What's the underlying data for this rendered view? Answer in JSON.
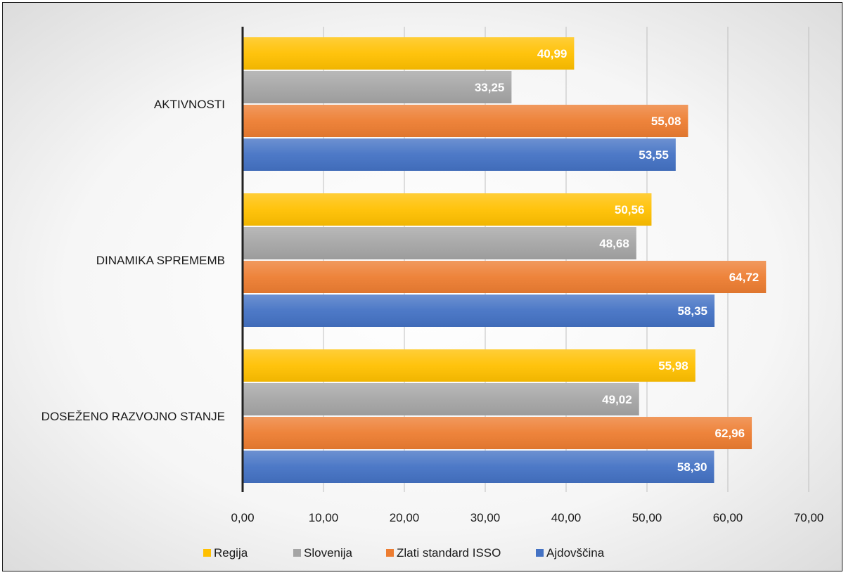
{
  "chart_data": {
    "type": "bar",
    "orientation": "horizontal",
    "categories": [
      "AKTIVNOSTI",
      "DINAMIKA SPREMEMB",
      "DOSEŽENO RAZVOJNO STANJE"
    ],
    "series": [
      {
        "name": "Regija",
        "color": "#FFC000",
        "values": [
          40.99,
          50.56,
          55.98
        ],
        "labels": [
          "40,99",
          "50,56",
          "55,98"
        ]
      },
      {
        "name": "Slovenija",
        "color": "#A5A5A5",
        "values": [
          33.25,
          48.68,
          49.02
        ],
        "labels": [
          "33,25",
          "48,68",
          "49,02"
        ]
      },
      {
        "name": "Zlati standard ISSO",
        "color": "#ED7D31",
        "values": [
          55.08,
          64.72,
          62.96
        ],
        "labels": [
          "55,08",
          "64,72",
          "62,96"
        ]
      },
      {
        "name": "Ajdovščina",
        "color": "#4472C4",
        "values": [
          53.55,
          58.35,
          58.3
        ],
        "labels": [
          "53,55",
          "58,35",
          "58,30"
        ]
      }
    ],
    "xlim": [
      0,
      70
    ],
    "ticks": [
      0,
      10,
      20,
      30,
      40,
      50,
      60,
      70
    ],
    "tick_labels": [
      "0,00",
      "10,00",
      "20,00",
      "30,00",
      "40,00",
      "50,00",
      "60,00",
      "70,00"
    ],
    "grid": true,
    "legend": "bottom"
  }
}
